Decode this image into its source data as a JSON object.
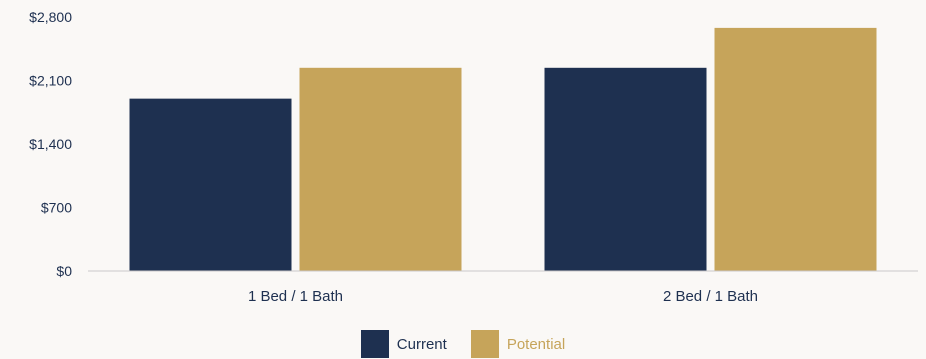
{
  "chart_data": {
    "type": "bar",
    "categories": [
      "1 Bed / 1 Bath",
      "2 Bed / 1 Bath"
    ],
    "series": [
      {
        "name": "Current",
        "values": [
          1900,
          2240
        ],
        "color": "#1e3050"
      },
      {
        "name": "Potential",
        "values": [
          2240,
          2680
        ],
        "color": "#c6a45a"
      }
    ],
    "ylim": [
      0,
      2800
    ],
    "yticks": [
      0,
      700,
      1400,
      2100,
      2800
    ],
    "ytick_labels": [
      "$0",
      "$700",
      "$1,400",
      "$2,100",
      "$2,800"
    ],
    "grid": false,
    "legend_position": "bottom"
  }
}
